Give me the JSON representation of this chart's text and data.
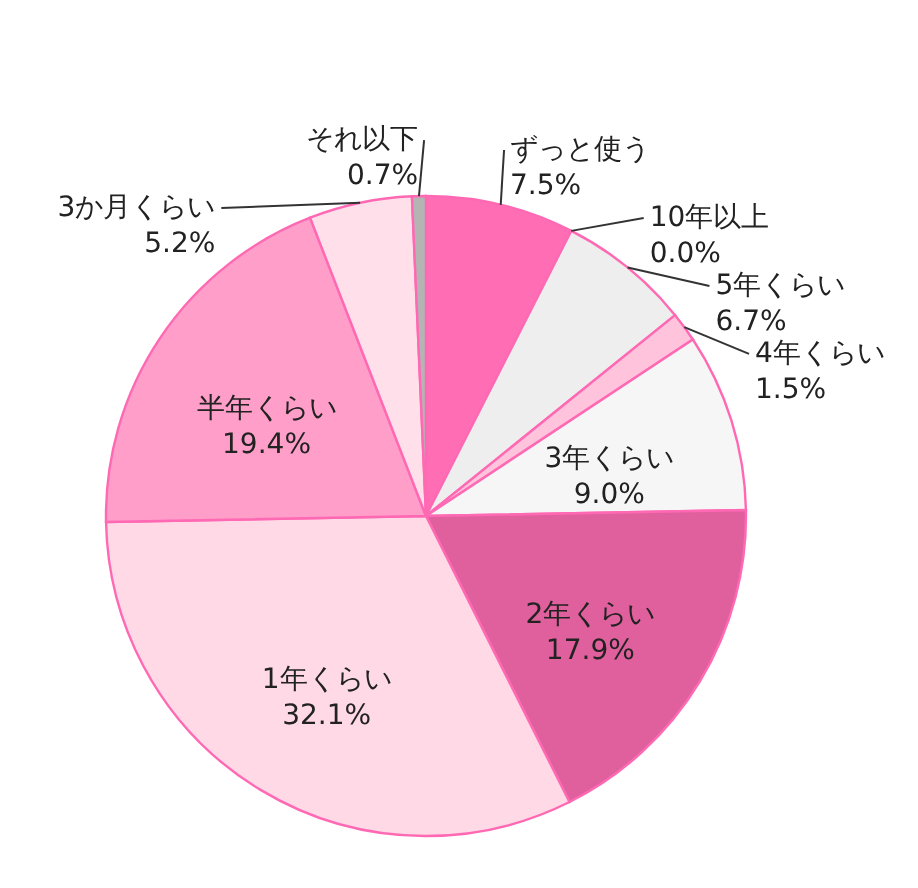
{
  "chart_data": {
    "type": "pie",
    "categories": [
      "ずっと使う",
      "10年以上",
      "5年くらい",
      "4年くらい",
      "3年くらい",
      "2年くらい",
      "1年くらい",
      "半年くらい",
      "3か月くらい",
      "それ以下"
    ],
    "values": [
      7.5,
      0.0,
      6.7,
      1.5,
      9.0,
      17.9,
      32.1,
      19.4,
      5.2,
      0.7
    ],
    "colors": [
      "#ff6eb4",
      "#f4f4f4",
      "#eeeeee",
      "#ffc4dc",
      "#f6f6f6",
      "#e0609e",
      "#ffd9e6",
      "#ff9ec9",
      "#ffdfe9",
      "#b4b4b4"
    ],
    "value_labels": [
      "7.5%",
      "0.0%",
      "6.7%",
      "1.5%",
      "9.0%",
      "17.9%",
      "32.1%",
      "19.4%",
      "5.2%",
      "0.7%"
    ]
  }
}
